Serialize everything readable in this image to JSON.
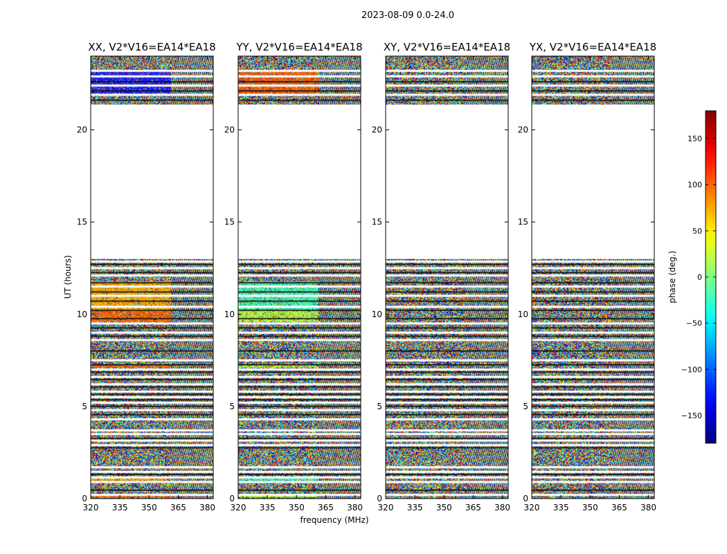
{
  "figure": {
    "suptitle": "2023-08-09 0.0-24.0",
    "xlabel": "frequency (MHz)",
    "ylabel": "UT (hours)",
    "colorbar_label": "phase (deg.)"
  },
  "chart_data": {
    "type": "heatmap",
    "colormap": "jet",
    "xlim": [
      320,
      383
    ],
    "ylim": [
      0,
      24
    ],
    "xticks": [
      320,
      335,
      350,
      365,
      380
    ],
    "yticks": [
      0,
      5,
      10,
      15,
      20
    ],
    "clim": [
      -180,
      180
    ],
    "colorbar_ticks": [
      -150,
      -100,
      -50,
      0,
      50,
      100,
      150
    ],
    "data_gap_hours": [
      13.0,
      21.4
    ],
    "rfi_boundary_mhz": 361,
    "colors": {
      "XX": {
        "upper_band": "#1a1aff",
        "mid_band": "#ffa500",
        "low_band": "#ff6000"
      },
      "YY": {
        "upper_band": "#ff5a00",
        "mid_band": "#40ffb0",
        "low_band": "#b0ff40"
      }
    },
    "panels": [
      {
        "title": "XX, V2*V16=EA14*EA18",
        "coherent": true
      },
      {
        "title": "YY, V2*V16=EA14*EA18",
        "coherent": true
      },
      {
        "title": "XY, V2*V16=EA14*EA18",
        "coherent": false
      },
      {
        "title": "YX, V2*V16=EA14*EA18",
        "coherent": false
      }
    ]
  }
}
